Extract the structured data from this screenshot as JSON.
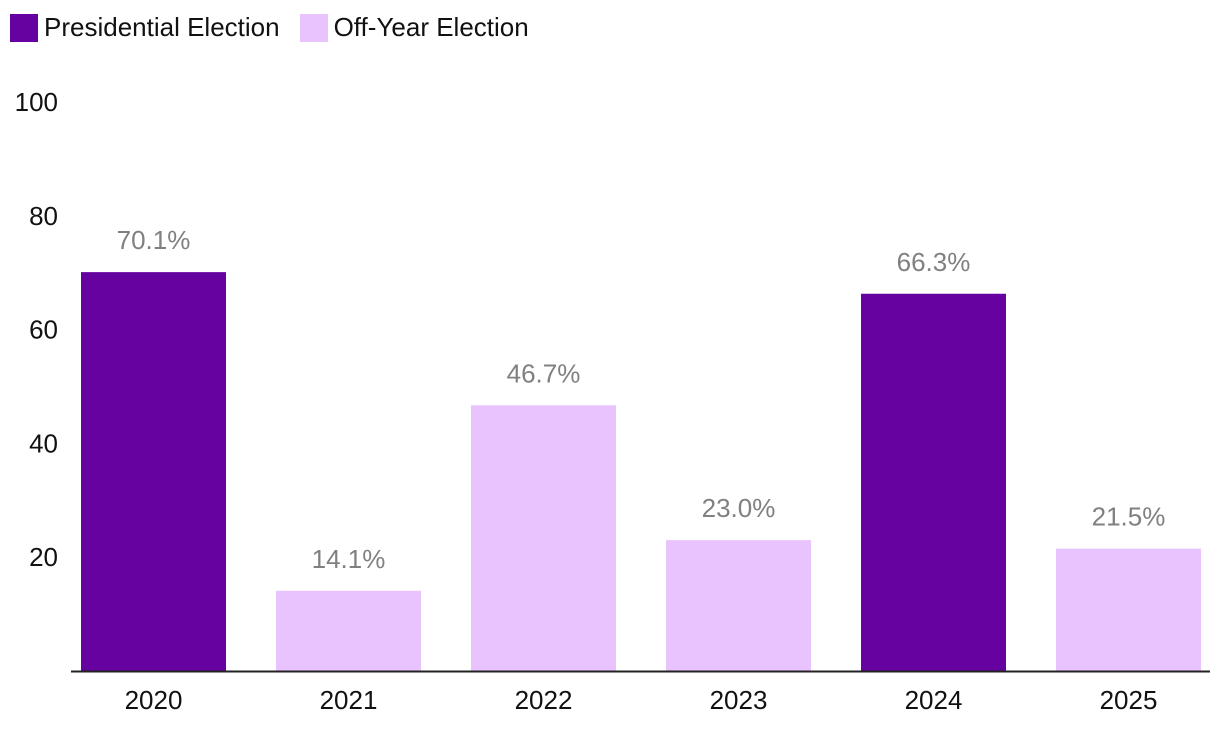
{
  "legend": {
    "presidential_label": "Presidential Election",
    "offyear_label": "Off-Year Election"
  },
  "colors": {
    "presidential": "#66029f",
    "offyear": "#e8c3fd",
    "axis": "#222222",
    "data_label": "#808080"
  },
  "chart_data": {
    "type": "bar",
    "title": "",
    "xlabel": "",
    "ylabel": "",
    "categories": [
      "2020",
      "2021",
      "2022",
      "2023",
      "2024",
      "2025"
    ],
    "values": [
      70.1,
      14.1,
      46.7,
      23.0,
      66.3,
      21.5
    ],
    "data_labels": [
      "70.1%",
      "14.1%",
      "46.7%",
      "23.0%",
      "66.3%",
      "21.5%"
    ],
    "series_type": [
      "Presidential Election",
      "Off-Year Election",
      "Off-Year Election",
      "Off-Year Election",
      "Presidential Election",
      "Off-Year Election"
    ],
    "ylim": [
      0,
      100
    ],
    "yticks": [
      20,
      40,
      60,
      80,
      100
    ],
    "grid": false,
    "legend_position": "top-left"
  }
}
